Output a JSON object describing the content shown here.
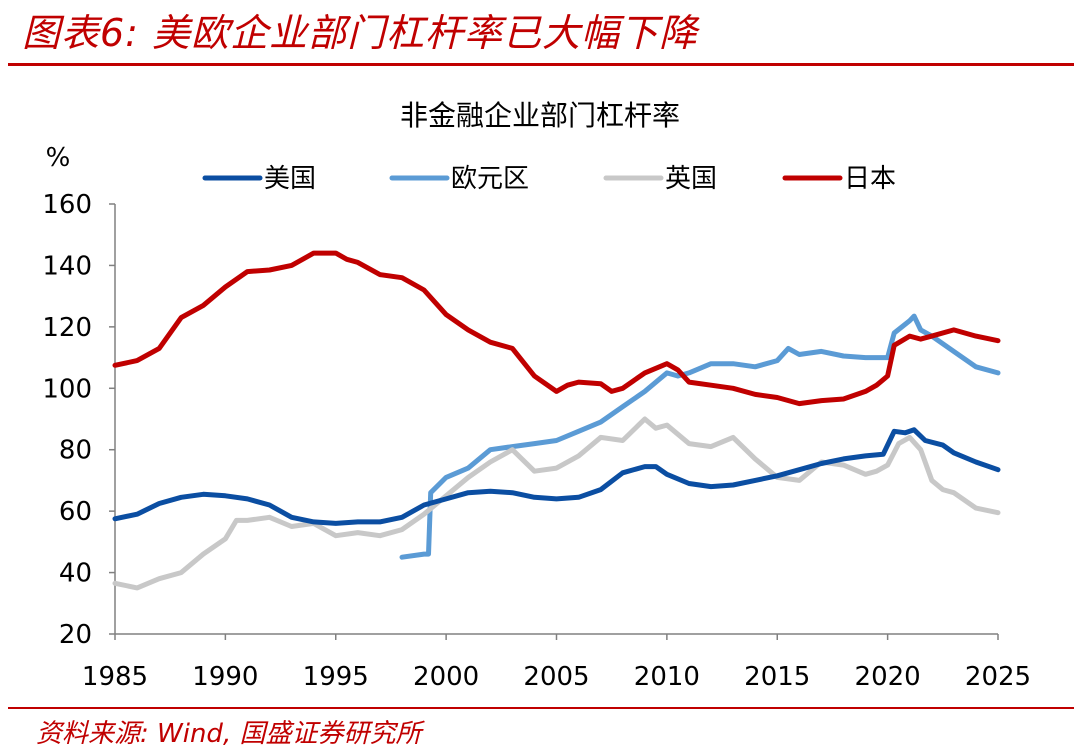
{
  "figure": {
    "title": "图表6: 美欧企业部门杠杆率已大幅下降",
    "source": "资料来源: Wind, 国盛证券研究所",
    "accent_color": "#c00000"
  },
  "chart_data": {
    "type": "line",
    "title": "非金融企业部门杠杆率",
    "ylabel": "%",
    "xlabel": "",
    "xlim": [
      1985,
      2025
    ],
    "ylim": [
      20,
      160
    ],
    "x_ticks": [
      1985,
      1990,
      1995,
      2000,
      2005,
      2010,
      2015,
      2020,
      2025
    ],
    "y_ticks": [
      20,
      40,
      60,
      80,
      100,
      120,
      140,
      160
    ],
    "grid": false,
    "legend_position": "top",
    "series": [
      {
        "name": "美国",
        "color": "#0b4ea2",
        "points": [
          [
            1985,
            57.5
          ],
          [
            1986,
            59
          ],
          [
            1987,
            62.5
          ],
          [
            1988,
            64.5
          ],
          [
            1989,
            65.5
          ],
          [
            1990,
            65
          ],
          [
            1991,
            64
          ],
          [
            1992,
            62
          ],
          [
            1993,
            58
          ],
          [
            1994,
            56.5
          ],
          [
            1995,
            56
          ],
          [
            1996,
            56.5
          ],
          [
            1997,
            56.5
          ],
          [
            1998,
            58
          ],
          [
            1999,
            62
          ],
          [
            2000,
            64
          ],
          [
            2001,
            66
          ],
          [
            2002,
            66.5
          ],
          [
            2003,
            66
          ],
          [
            2004,
            64.5
          ],
          [
            2005,
            64
          ],
          [
            2006,
            64.5
          ],
          [
            2007,
            67
          ],
          [
            2008,
            72.5
          ],
          [
            2009,
            74.5
          ],
          [
            2009.5,
            74.5
          ],
          [
            2010,
            72
          ],
          [
            2011,
            69
          ],
          [
            2012,
            68
          ],
          [
            2013,
            68.5
          ],
          [
            2014,
            70
          ],
          [
            2015,
            71.5
          ],
          [
            2016,
            73.5
          ],
          [
            2017,
            75.5
          ],
          [
            2018,
            77
          ],
          [
            2019,
            78
          ],
          [
            2019.8,
            78.5
          ],
          [
            2020.3,
            86
          ],
          [
            2020.8,
            85.5
          ],
          [
            2021.2,
            86.5
          ],
          [
            2021.7,
            83
          ],
          [
            2022.5,
            81.5
          ],
          [
            2023,
            79
          ],
          [
            2024,
            76
          ],
          [
            2025,
            73.5
          ]
        ]
      },
      {
        "name": "欧元区",
        "color": "#5b9bd5",
        "points": [
          [
            1998,
            45
          ],
          [
            1999,
            46
          ],
          [
            1999.2,
            46
          ],
          [
            1999.3,
            66
          ],
          [
            2000,
            71
          ],
          [
            2001,
            74
          ],
          [
            2002,
            80
          ],
          [
            2003,
            81
          ],
          [
            2004,
            82
          ],
          [
            2005,
            83
          ],
          [
            2006,
            86
          ],
          [
            2007,
            89
          ],
          [
            2008,
            94
          ],
          [
            2009,
            99
          ],
          [
            2010,
            105
          ],
          [
            2010.5,
            104
          ],
          [
            2011,
            105
          ],
          [
            2012,
            108
          ],
          [
            2013,
            108
          ],
          [
            2014,
            107
          ],
          [
            2015,
            109
          ],
          [
            2015.5,
            113
          ],
          [
            2016,
            111
          ],
          [
            2017,
            112
          ],
          [
            2018,
            110.5
          ],
          [
            2019,
            110
          ],
          [
            2020,
            110
          ],
          [
            2020.3,
            118
          ],
          [
            2021,
            122
          ],
          [
            2021.2,
            123.5
          ],
          [
            2021.5,
            119
          ],
          [
            2022,
            117
          ],
          [
            2023,
            112
          ],
          [
            2024,
            107
          ],
          [
            2025,
            105
          ]
        ]
      },
      {
        "name": "英国",
        "color": "#c8c8c8",
        "points": [
          [
            1985,
            36.5
          ],
          [
            1986,
            35
          ],
          [
            1987,
            38
          ],
          [
            1988,
            40
          ],
          [
            1989,
            46
          ],
          [
            1990,
            51
          ],
          [
            1990.5,
            57
          ],
          [
            1991,
            57
          ],
          [
            1992,
            58
          ],
          [
            1993,
            55
          ],
          [
            1994,
            56
          ],
          [
            1995,
            52
          ],
          [
            1996,
            53
          ],
          [
            1997,
            52
          ],
          [
            1998,
            54
          ],
          [
            1999,
            59
          ],
          [
            2000,
            65
          ],
          [
            2001,
            71
          ],
          [
            2002,
            76
          ],
          [
            2003,
            80
          ],
          [
            2004,
            73
          ],
          [
            2005,
            74
          ],
          [
            2006,
            78
          ],
          [
            2007,
            84
          ],
          [
            2008,
            83
          ],
          [
            2009,
            90
          ],
          [
            2009.5,
            87
          ],
          [
            2010,
            88
          ],
          [
            2011,
            82
          ],
          [
            2012,
            81
          ],
          [
            2013,
            84
          ],
          [
            2014,
            77
          ],
          [
            2015,
            71
          ],
          [
            2016,
            70
          ],
          [
            2017,
            76
          ],
          [
            2018,
            75
          ],
          [
            2019,
            72
          ],
          [
            2019.5,
            73
          ],
          [
            2020,
            75
          ],
          [
            2020.5,
            82
          ],
          [
            2021,
            84
          ],
          [
            2021.5,
            80
          ],
          [
            2022,
            70
          ],
          [
            2022.5,
            67
          ],
          [
            2023,
            66
          ],
          [
            2024,
            61
          ],
          [
            2025,
            59.5
          ]
        ]
      },
      {
        "name": "日本",
        "color": "#c00000",
        "points": [
          [
            1985,
            107.5
          ],
          [
            1986,
            109
          ],
          [
            1987,
            113
          ],
          [
            1988,
            123
          ],
          [
            1989,
            127
          ],
          [
            1990,
            133
          ],
          [
            1991,
            138
          ],
          [
            1992,
            138.5
          ],
          [
            1993,
            140
          ],
          [
            1993.5,
            142
          ],
          [
            1994,
            144
          ],
          [
            1995,
            144
          ],
          [
            1995.5,
            142
          ],
          [
            1996,
            141
          ],
          [
            1997,
            137
          ],
          [
            1998,
            136
          ],
          [
            1999,
            132
          ],
          [
            2000,
            124
          ],
          [
            2001,
            119
          ],
          [
            2002,
            115
          ],
          [
            2003,
            113
          ],
          [
            2004,
            104
          ],
          [
            2005,
            99
          ],
          [
            2005.5,
            101
          ],
          [
            2006,
            102
          ],
          [
            2007,
            101.5
          ],
          [
            2007.5,
            99
          ],
          [
            2008,
            100
          ],
          [
            2009,
            105
          ],
          [
            2010,
            108
          ],
          [
            2010.5,
            106
          ],
          [
            2011,
            102
          ],
          [
            2012,
            101
          ],
          [
            2013,
            100
          ],
          [
            2014,
            98
          ],
          [
            2015,
            97
          ],
          [
            2016,
            95
          ],
          [
            2017,
            96
          ],
          [
            2018,
            96.5
          ],
          [
            2019,
            99
          ],
          [
            2019.5,
            101
          ],
          [
            2020,
            104
          ],
          [
            2020.3,
            114
          ],
          [
            2021,
            117
          ],
          [
            2021.5,
            116
          ],
          [
            2022,
            117
          ],
          [
            2023,
            119
          ],
          [
            2024,
            117
          ],
          [
            2025,
            115.5
          ]
        ]
      }
    ]
  }
}
